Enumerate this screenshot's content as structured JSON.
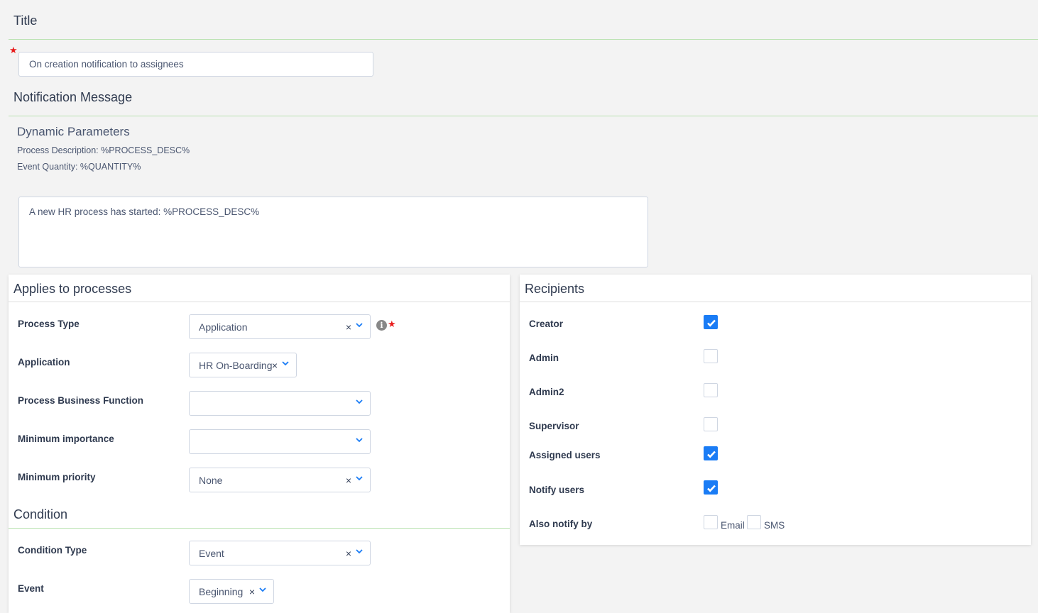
{
  "title_section": {
    "heading": "Title",
    "value": "On creation notification to assignees"
  },
  "message_section": {
    "heading": "Notification Message",
    "dynamic_heading": "Dynamic Parameters",
    "params": [
      "Process Description: %PROCESS_DESC%",
      "Event Quantity: %QUANTITY%"
    ],
    "message": "A new HR process has started: %PROCESS_DESC%"
  },
  "applies": {
    "heading": "Applies to processes",
    "fields": [
      {
        "label": "Process Type",
        "value": "Application",
        "clearable": true
      },
      {
        "label": "Application",
        "value": "HR On-Boarding",
        "clearable": true
      },
      {
        "label": "Process Business Function",
        "value": "",
        "clearable": false
      },
      {
        "label": "Minimum importance",
        "value": "",
        "clearable": false
      },
      {
        "label": "Minimum priority",
        "value": "None",
        "clearable": true
      }
    ]
  },
  "condition": {
    "heading": "Condition",
    "fields": [
      {
        "label": "Condition Type",
        "value": "Event"
      },
      {
        "label": "Event",
        "value": "Beginning"
      }
    ]
  },
  "recipients": {
    "heading": "Recipients",
    "items": [
      {
        "label": "Creator",
        "checked": true
      },
      {
        "label": "Admin",
        "checked": false
      },
      {
        "label": "Admin2",
        "checked": false
      },
      {
        "label": "Supervisor",
        "checked": false
      },
      {
        "label": "Assigned users",
        "checked": true
      },
      {
        "label": "Notify users",
        "checked": true
      }
    ],
    "also_notify": {
      "label": "Also notify by",
      "options": [
        {
          "label": "Email",
          "checked": false
        },
        {
          "label": "SMS",
          "checked": false
        }
      ]
    }
  },
  "colors": {
    "accent": "#1a7cf5",
    "required": "#e81b1b",
    "divider": "#b9e2b0"
  },
  "clear_glyph": "×"
}
